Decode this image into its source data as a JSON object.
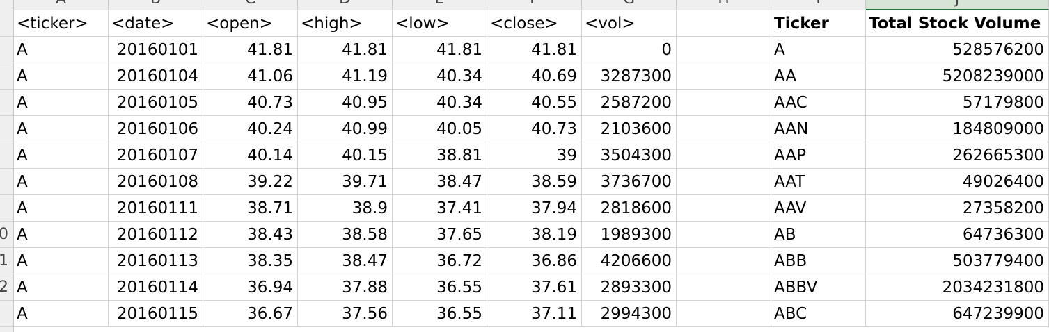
{
  "column_headers": [
    "A",
    "B",
    "C",
    "D",
    "E",
    "F",
    "G",
    "H",
    "I",
    "J"
  ],
  "row_numbers": [
    "",
    "",
    "",
    "",
    "",
    "",
    "",
    "",
    "0",
    "1",
    "2"
  ],
  "headers": [
    "<ticker>",
    "<date>",
    "<open>",
    "<high>",
    "<low>",
    "<close>",
    "<vol>",
    "",
    "Ticker",
    "Total Stock Volume"
  ],
  "rows": [
    [
      "A",
      "20160101",
      "41.81",
      "41.81",
      "41.81",
      "41.81",
      "0",
      "",
      "A",
      "528576200"
    ],
    [
      "A",
      "20160104",
      "41.06",
      "41.19",
      "40.34",
      "40.69",
      "3287300",
      "",
      "AA",
      "5208239000"
    ],
    [
      "A",
      "20160105",
      "40.73",
      "40.95",
      "40.34",
      "40.55",
      "2587200",
      "",
      "AAC",
      "57179800"
    ],
    [
      "A",
      "20160106",
      "40.24",
      "40.99",
      "40.05",
      "40.73",
      "2103600",
      "",
      "AAN",
      "184809000"
    ],
    [
      "A",
      "20160107",
      "40.14",
      "40.15",
      "38.81",
      "39",
      "3504300",
      "",
      "AAP",
      "262665300"
    ],
    [
      "A",
      "20160108",
      "39.22",
      "39.71",
      "38.47",
      "38.59",
      "3736700",
      "",
      "AAT",
      "49026400"
    ],
    [
      "A",
      "20160111",
      "38.71",
      "38.9",
      "37.41",
      "37.94",
      "2818600",
      "",
      "AAV",
      "27358200"
    ],
    [
      "A",
      "20160112",
      "38.43",
      "38.58",
      "37.65",
      "38.19",
      "1989300",
      "",
      "AB",
      "64736300"
    ],
    [
      "A",
      "20160113",
      "38.35",
      "38.47",
      "36.72",
      "36.86",
      "4206600",
      "",
      "ABB",
      "503779400"
    ],
    [
      "A",
      "20160114",
      "36.94",
      "37.88",
      "36.55",
      "37.61",
      "2893300",
      "",
      "ABBV",
      "2034231800"
    ],
    [
      "A",
      "20160115",
      "36.67",
      "37.56",
      "36.55",
      "37.11",
      "2994300",
      "",
      "ABC",
      "647239900"
    ]
  ],
  "selected_column": "J"
}
